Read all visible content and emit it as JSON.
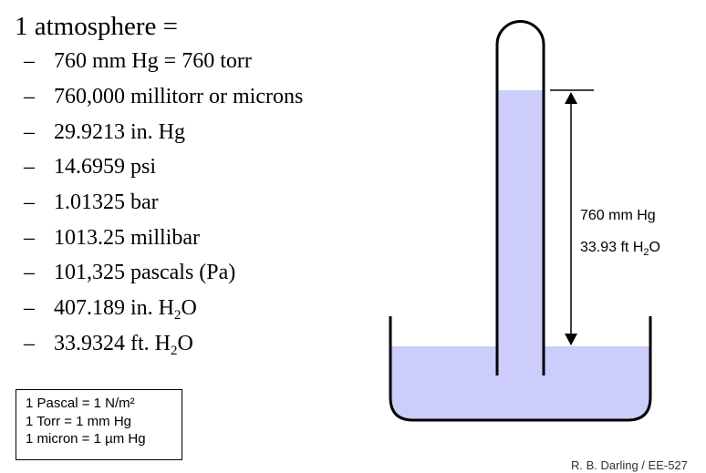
{
  "title": "1 atmosphere =",
  "list": {
    "dash": "–",
    "items": [
      {
        "text": "760 mm Hg = 760 torr",
        "sub": "",
        "after": ""
      },
      {
        "text": "760,000 millitorr or microns",
        "sub": "",
        "after": ""
      },
      {
        "text": "29.9213 in. Hg",
        "sub": "",
        "after": ""
      },
      {
        "text": "14.6959 psi",
        "sub": "",
        "after": ""
      },
      {
        "text": "1.01325 bar",
        "sub": "",
        "after": ""
      },
      {
        "text": "1013.25 millibar",
        "sub": "",
        "after": ""
      },
      {
        "text": "101,325 pascals (Pa)",
        "sub": "",
        "after": ""
      },
      {
        "text": "407.189 in. H",
        "sub": "2",
        "after": "O"
      },
      {
        "text": "33.9324 ft. H",
        "sub": "2",
        "after": "O"
      }
    ]
  },
  "definitions": [
    "1 Pascal = 1 N/m²",
    "1 Torr = 1 mm Hg",
    "1 micron = 1 µm Hg"
  ],
  "diagram": {
    "label_1": "760 mm Hg",
    "label_2_pre": "33.93 ft H",
    "label_2_sub": "2",
    "label_2_post": "O",
    "liquid_color": "#cccdfb",
    "outline_color": "#000000"
  },
  "credit": "R. B. Darling / EE-527"
}
